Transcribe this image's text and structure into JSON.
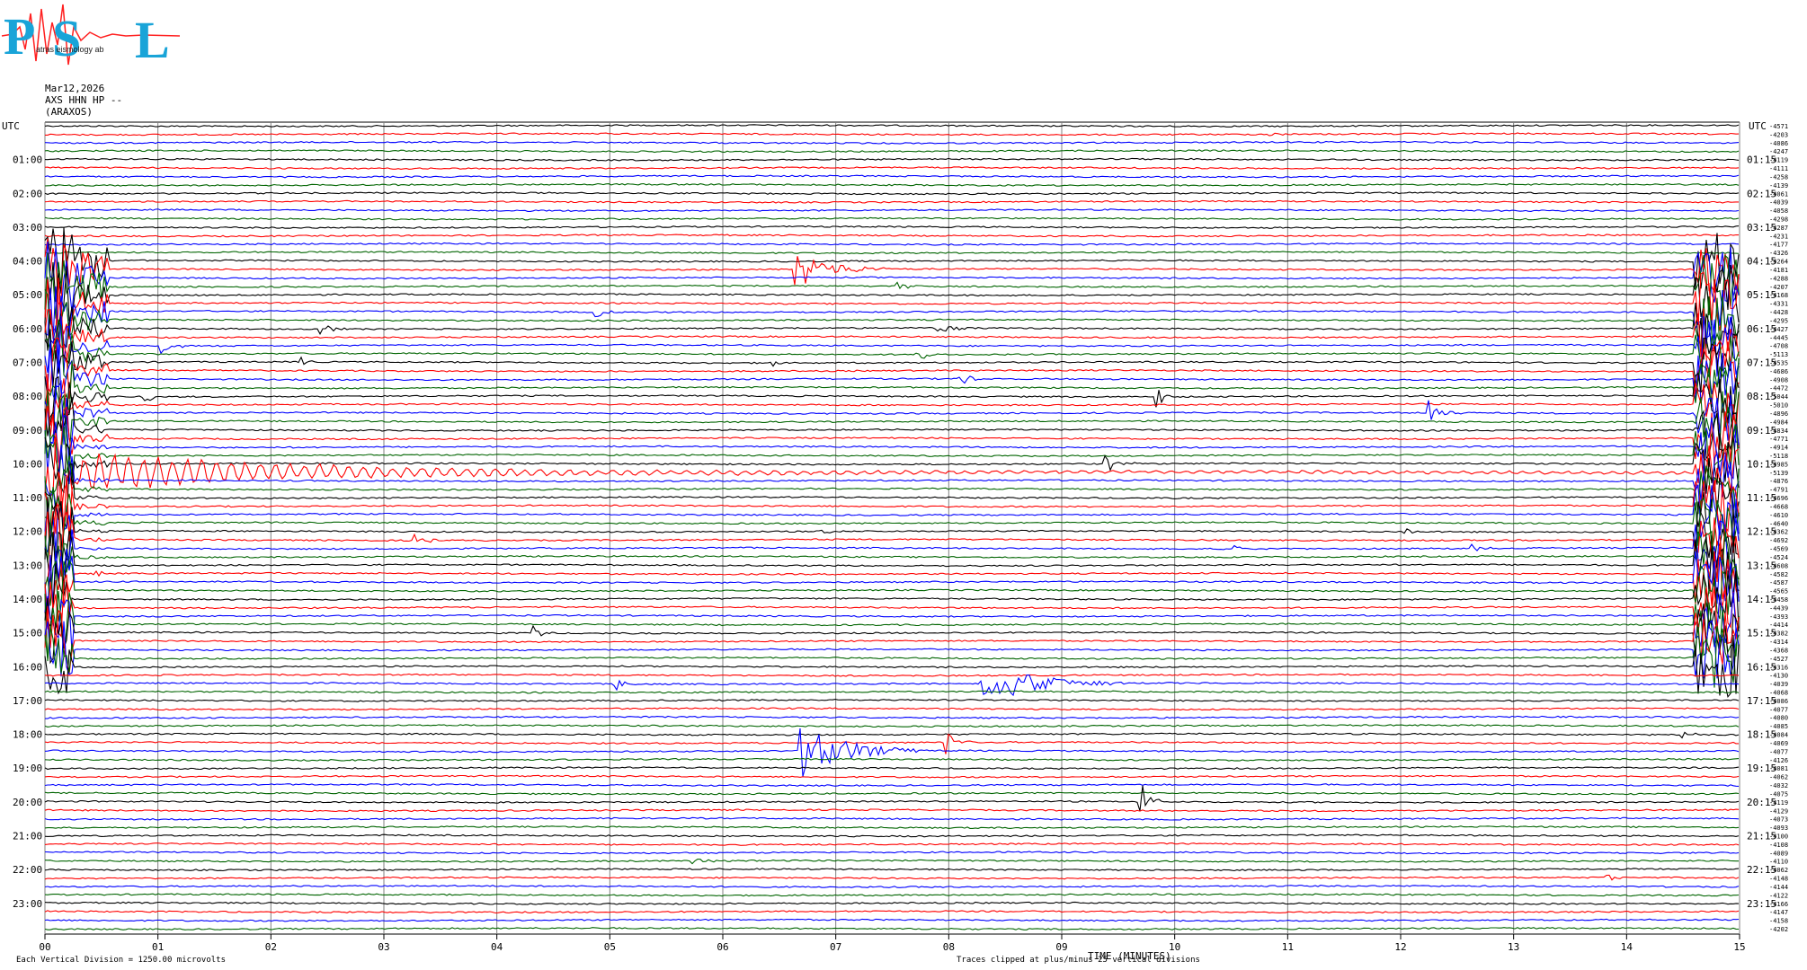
{
  "logo": {
    "text": "PSL",
    "subtitle": "atras  eismology  ab"
  },
  "header": {
    "date": "Mar12,2026",
    "station": "AXS HHN HP --",
    "site": "(ARAXOS)"
  },
  "axis": {
    "left_label": "UTC",
    "right_label": "UTC",
    "left_hours": [
      "01:00",
      "02:00",
      "03:00",
      "04:00",
      "05:00",
      "06:00",
      "07:00",
      "08:00",
      "09:00",
      "10:00",
      "11:00",
      "12:00",
      "13:00",
      "14:00",
      "15:00",
      "16:00",
      "17:00",
      "18:00",
      "19:00",
      "20:00",
      "21:00",
      "22:00",
      "23:00"
    ],
    "right_hours": [
      "01:15",
      "02:15",
      "03:15",
      "04:15",
      "05:15",
      "06:15",
      "07:15",
      "08:15",
      "09:15",
      "10:15",
      "11:15",
      "12:15",
      "13:15",
      "14:15",
      "15:15",
      "16:15",
      "17:15",
      "18:15",
      "19:15",
      "20:15",
      "21:15",
      "22:15",
      "23:15"
    ],
    "minute_ticks": [
      "00",
      "01",
      "02",
      "03",
      "04",
      "05",
      "06",
      "07",
      "08",
      "09",
      "10",
      "11",
      "12",
      "13",
      "14",
      "15"
    ],
    "xlabel": "TIME (MINUTES)"
  },
  "footer": {
    "left_note": "Each Vertical Division = 1250.00 microvolts",
    "right_note": "Traces clipped at plus/minus 25 vertical divisions"
  },
  "colors": {
    "trace_cycle": [
      "#000000",
      "#ff0000",
      "#0000ff",
      "#006400"
    ],
    "grid": "#808080"
  },
  "chart_data": {
    "type": "line",
    "title": "",
    "xlabel": "TIME (MINUTES)",
    "ylabel": "",
    "xlim": [
      0,
      15
    ],
    "rows": 96,
    "row_minutes": 15,
    "right_offsets": [
      "-4571",
      "-4203",
      "-4086",
      "-4247",
      "-4119",
      "-4111",
      "-4258",
      "-4139",
      "-4061",
      "-4039",
      "-4058",
      "-4298",
      "-4287",
      "-4231",
      "-4177",
      "-4326",
      "-4264",
      "-4181",
      "-4288",
      "-4207",
      "-4168",
      "-4331",
      "-4428",
      "-4295",
      "-4427",
      "-4445",
      "-4708",
      "-5113",
      "-4535",
      "-4686",
      "-4908",
      "-4472",
      "-5044",
      "-5010",
      "-4896",
      "-4984",
      "-4834",
      "-4771",
      "-4914",
      "-5118",
      "-4985",
      "-5139",
      "-4876",
      "-4791",
      "-4696",
      "-4668",
      "-4610",
      "-4640",
      "-4362",
      "-4692",
      "-4569",
      "-4524",
      "-4608",
      "-4582",
      "-4587",
      "-4565",
      "-4458",
      "-4439",
      "-4393",
      "-4414",
      "-4382",
      "-4314",
      "-4368",
      "-4527",
      "-4316",
      "-4130",
      "-4039",
      "-4068",
      "-4086",
      "-4077",
      "-4080",
      "-4085",
      "-4084",
      "-4069",
      "-4077",
      "-4126",
      "-4081",
      "-4062",
      "-4032",
      "-4075",
      "-4119",
      "-4129",
      "-4073",
      "-4093",
      "-4100",
      "-4108",
      "-4089",
      "-4110",
      "-4062",
      "-4148",
      "-4144",
      "-4122",
      "-4166",
      "-4147",
      "-4158",
      "-4202"
    ],
    "events": [
      {
        "row": 1,
        "minute": 10.85,
        "amp": 2,
        "dur": 0.35,
        "size": "small"
      },
      {
        "row": 17,
        "minute": 6.65,
        "amp": 22,
        "dur": 0.8,
        "size": "medium"
      },
      {
        "row": 19,
        "minute": 7.55,
        "amp": 6,
        "dur": 0.3,
        "size": "small"
      },
      {
        "row": 22,
        "minute": 4.9,
        "amp": 7,
        "dur": 0.15,
        "size": "small"
      },
      {
        "row": 24,
        "minute": 2.45,
        "amp": 10,
        "dur": 0.2,
        "size": "small"
      },
      {
        "row": 24,
        "minute": 7.9,
        "amp": 8,
        "dur": 0.3,
        "size": "small"
      },
      {
        "row": 25,
        "minute": 0.28,
        "amp": 8,
        "dur": 0.15,
        "size": "small"
      },
      {
        "row": 26,
        "minute": 1.05,
        "amp": 10,
        "dur": 0.2,
        "size": "small"
      },
      {
        "row": 27,
        "minute": 7.7,
        "amp": 9,
        "dur": 0.25,
        "size": "small"
      },
      {
        "row": 28,
        "minute": 2.28,
        "amp": 7,
        "dur": 0.15,
        "size": "small"
      },
      {
        "row": 28,
        "minute": 6.45,
        "amp": 4,
        "dur": 0.1,
        "size": "small"
      },
      {
        "row": 30,
        "minute": 8.1,
        "amp": 12,
        "dur": 0.2,
        "size": "small"
      },
      {
        "row": 32,
        "minute": 0.9,
        "amp": 8,
        "dur": 0.15,
        "size": "small"
      },
      {
        "row": 32,
        "minute": 9.85,
        "amp": 12,
        "dur": 0.15,
        "size": "small"
      },
      {
        "row": 34,
        "minute": 12.25,
        "amp": 16,
        "dur": 0.3,
        "size": "small"
      },
      {
        "row": 40,
        "minute": 9.4,
        "amp": 10,
        "dur": 0.25,
        "size": "small"
      },
      {
        "row": 48,
        "minute": 6.9,
        "amp": 5,
        "dur": 0.2,
        "size": "small"
      },
      {
        "row": 48,
        "minute": 12.05,
        "amp": 6,
        "dur": 0.15,
        "size": "small"
      },
      {
        "row": 49,
        "minute": 3.3,
        "amp": 7,
        "dur": 0.2,
        "size": "small"
      },
      {
        "row": 50,
        "minute": 10.55,
        "amp": 7,
        "dur": 0.15,
        "size": "small"
      },
      {
        "row": 50,
        "minute": 12.65,
        "amp": 4,
        "dur": 0.25,
        "size": "small"
      },
      {
        "row": 53,
        "minute": 0.45,
        "amp": 8,
        "dur": 0.15,
        "size": "small"
      },
      {
        "row": 60,
        "minute": 4.35,
        "amp": 9,
        "dur": 0.15,
        "size": "small"
      },
      {
        "row": 66,
        "minute": 5.05,
        "amp": 8,
        "dur": 0.2,
        "size": "small"
      },
      {
        "row": 66,
        "minute": 8.3,
        "amp": 24,
        "dur": 1.3,
        "size": "medium"
      },
      {
        "row": 72,
        "minute": 14.5,
        "amp": 6,
        "dur": 0.2,
        "size": "small"
      },
      {
        "row": 73,
        "minute": 8.0,
        "amp": 14,
        "dur": 0.2,
        "size": "small"
      },
      {
        "row": 74,
        "minute": 6.7,
        "amp": 30,
        "dur": 1.1,
        "size": "large"
      },
      {
        "row": 80,
        "minute": 9.7,
        "amp": 26,
        "dur": 0.2,
        "size": "small"
      },
      {
        "row": 87,
        "minute": 5.75,
        "amp": 4,
        "dur": 0.4,
        "size": "small"
      },
      {
        "row": 89,
        "minute": 13.85,
        "amp": 3,
        "dur": 0.2,
        "size": "small"
      }
    ],
    "mainshock": {
      "start_row": 16,
      "end_row": 64,
      "minute": 0.0,
      "note": "large clipped earthquake coda"
    },
    "end_of_row_burst": {
      "start_row": 16,
      "end_row": 64,
      "minute": 14.6
    }
  }
}
